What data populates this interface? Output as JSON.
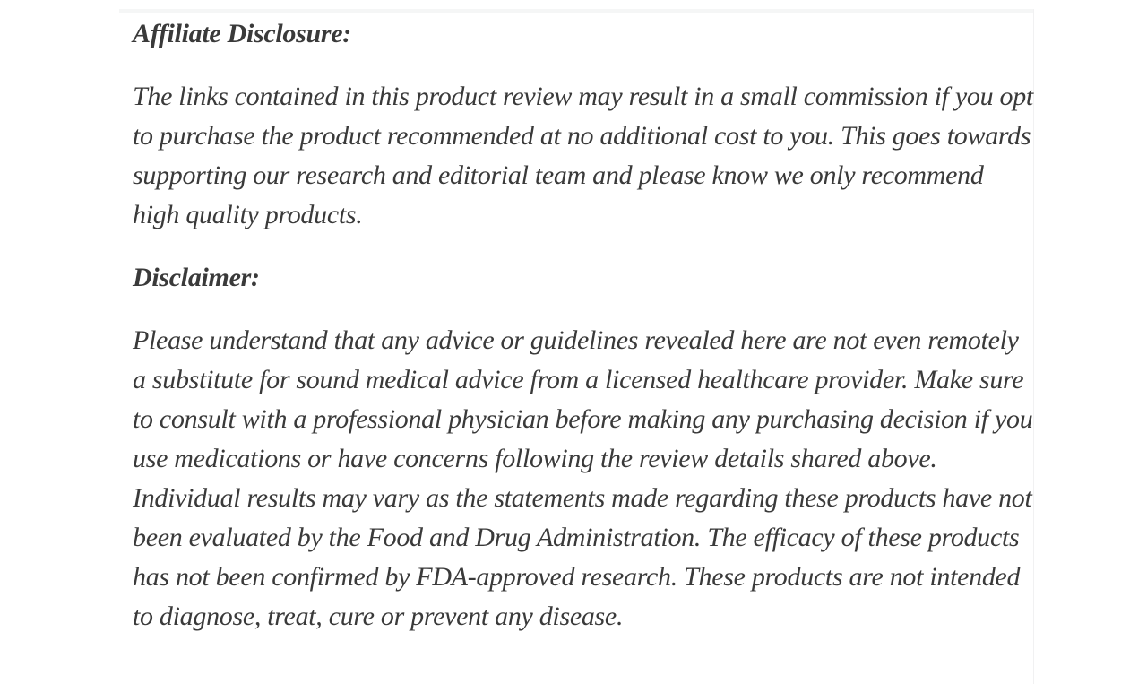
{
  "page": {
    "background_color": "#ffffff",
    "text_color": "#3a3a3a"
  },
  "article": {
    "sections": [
      {
        "heading": "Affiliate Disclosure:",
        "body": "The links contained in this product review may result in a small commission if you opt to purchase the product recommended at no additional cost to you. This goes towards supporting our research and editorial team and please know we only recommend high quality products."
      },
      {
        "heading": "Disclaimer:",
        "body": "Please understand that any advice or guidelines revealed here are not even remotely a substitute for sound medical advice from a licensed healthcare provider. Make sure to consult with a professional physician before making any purchasing decision if you use medications or have concerns following the review details shared above. Individual results may vary as the statements made regarding these products have not been evaluated by the Food and Drug Administration. The efficacy of these products has not been confirmed by FDA-approved research. These products are not intended to diagnose, treat, cure or prevent any disease."
      }
    ]
  }
}
